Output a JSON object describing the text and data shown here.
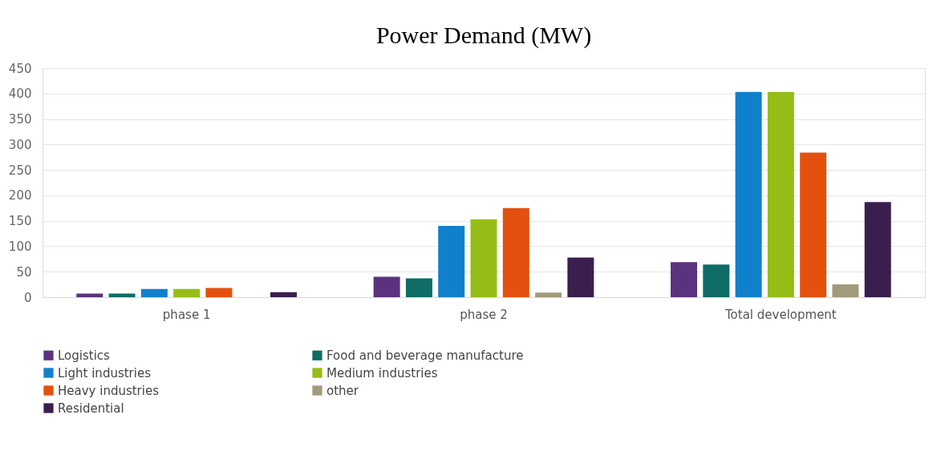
{
  "chart_data": {
    "type": "bar",
    "title": "Power Demand (MW)",
    "categories": [
      "phase 1",
      "phase 2",
      "Total development"
    ],
    "series": [
      {
        "name": "Logistics",
        "color": "#5b327e",
        "values": [
          7,
          40,
          69
        ]
      },
      {
        "name": "Food and beverage manufacture",
        "color": "#0f6d66",
        "values": [
          7,
          37,
          64
        ]
      },
      {
        "name": "Light industries",
        "color": "#1180cc",
        "values": [
          16,
          140,
          403
        ]
      },
      {
        "name": "Medium industries",
        "color": "#95bd16",
        "values": [
          16,
          153,
          403
        ]
      },
      {
        "name": "Heavy industries",
        "color": "#e4500e",
        "values": [
          18,
          175,
          284
        ]
      },
      {
        "name": "other",
        "color": "#a39a7c",
        "values": [
          null,
          9,
          25
        ]
      },
      {
        "name": "Residential",
        "color": "#3a1f4e",
        "values": [
          10,
          78,
          187
        ]
      }
    ],
    "ylim": [
      0,
      450
    ],
    "yticks": [
      0,
      50,
      100,
      150,
      200,
      250,
      300,
      350,
      400,
      450
    ],
    "grid": "y",
    "legend": "bottom"
  }
}
